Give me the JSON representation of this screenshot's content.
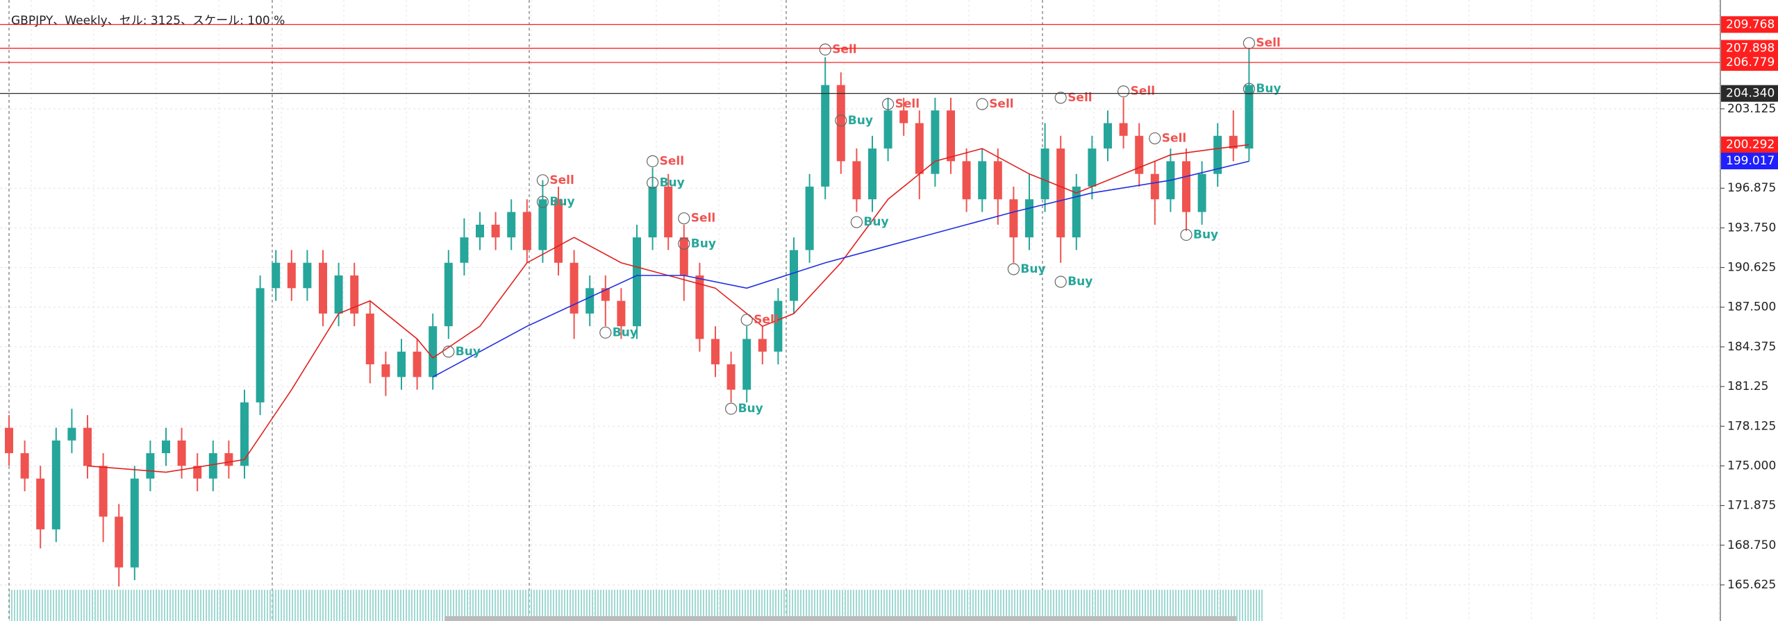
{
  "chart_data": {
    "type": "candlestick",
    "title": "GBPJPY、Weekly、セル: 3125、スケール: 100 %",
    "up_color": "#26a69a",
    "down_color": "#ef5350",
    "ylim": [
      162.78,
      211.7
    ],
    "yticks": [
      {
        "value": 165.625,
        "label": "165.625"
      },
      {
        "value": 168.75,
        "label": "168.750"
      },
      171.875,
      {
        "value": 175,
        "label": "175.000"
      },
      178.125,
      181.25,
      {
        "value": 184.375,
        "label": "184.375"
      },
      {
        "value": 187.5,
        "label": "187.500"
      },
      190.625,
      {
        "value": 193.75,
        "label": "193.750"
      },
      196.875,
      203.125
    ],
    "grid": true,
    "open": [
      178,
      176,
      174,
      170,
      177,
      178,
      175,
      171,
      167,
      174,
      176,
      177,
      175,
      174,
      176,
      175,
      180,
      189,
      191,
      189,
      191,
      187,
      190,
      187,
      183,
      182,
      184,
      182,
      186,
      191,
      193,
      194,
      193,
      195,
      192,
      196,
      191,
      187,
      189,
      188,
      186,
      193,
      197,
      193,
      190,
      185,
      183,
      181,
      185,
      184,
      188,
      192,
      197,
      205,
      199,
      196,
      200,
      203,
      202,
      198,
      203,
      199,
      196,
      199,
      196,
      193,
      196,
      200,
      193,
      197,
      200,
      202,
      201,
      198,
      196,
      199,
      195,
      198,
      201,
      200
    ],
    "high": [
      179,
      177,
      175,
      178,
      179.5,
      179,
      176,
      172,
      175,
      177,
      178,
      178,
      176,
      177,
      177,
      181,
      190,
      192,
      192,
      192,
      192,
      191,
      191,
      188,
      184,
      185,
      185,
      187,
      192,
      194.5,
      195,
      195,
      196,
      196,
      197.5,
      197,
      192,
      190,
      190,
      189,
      194,
      198.5,
      198,
      194,
      191,
      186,
      184,
      186,
      186,
      189,
      193,
      198,
      207.2,
      206,
      200,
      201,
      204,
      204,
      203,
      204,
      204,
      200,
      200,
      200,
      197,
      198,
      202,
      201,
      198,
      201,
      203,
      204,
      202,
      199,
      200,
      200,
      199,
      202,
      203,
      207.9
    ],
    "low": [
      175,
      173,
      168.5,
      169,
      176,
      174,
      169,
      165.5,
      166,
      173,
      175,
      174,
      173,
      173,
      174,
      174,
      179,
      188,
      188,
      188,
      186,
      186,
      186,
      181.5,
      180.5,
      181,
      181,
      181,
      185,
      190,
      192,
      192,
      192,
      191,
      191,
      190,
      185,
      186,
      186,
      185,
      185,
      192,
      192,
      188,
      184,
      182,
      180,
      180,
      183,
      183,
      187,
      191,
      196,
      198,
      195,
      195,
      199,
      201,
      196,
      197,
      198,
      195,
      195,
      194,
      191,
      192,
      195,
      191,
      192,
      196,
      199,
      200,
      197,
      194,
      195,
      193.5,
      194,
      197,
      199,
      199
    ],
    "close": [
      176,
      174,
      170,
      177,
      178,
      175,
      171,
      167,
      174,
      176,
      177,
      175,
      174,
      176,
      175,
      180,
      189,
      191,
      189,
      191,
      187,
      190,
      187,
      183,
      182,
      184,
      182,
      186,
      191,
      193,
      194,
      193,
      195,
      192,
      196,
      191,
      187,
      189,
      188,
      186,
      193,
      197,
      193,
      190,
      185,
      183,
      181,
      185,
      184,
      188,
      192,
      197,
      205,
      199,
      196,
      200,
      203,
      202,
      198,
      203,
      199,
      196,
      199,
      196,
      193,
      196,
      200,
      193,
      197,
      200,
      202,
      201,
      198,
      196,
      199,
      195,
      198,
      201,
      200,
      205
    ],
    "lines": [
      {
        "color": "#e02020",
        "x": [
          5,
          10,
          15,
          18,
          21,
          23,
          26,
          27,
          30,
          33,
          36,
          39,
          42,
          45,
          48,
          50,
          53,
          56,
          59,
          62,
          65,
          68,
          71,
          74,
          77,
          79
        ],
        "values": [
          175,
          174.5,
          175.5,
          181,
          187,
          188,
          185,
          183.5,
          186,
          191,
          193,
          191,
          190,
          189,
          186,
          187,
          191,
          196,
          199,
          200,
          198,
          196.5,
          198,
          199.5,
          200,
          200.3
        ]
      },
      {
        "color": "#1f2ee0",
        "x": [
          27,
          33,
          40,
          43,
          47,
          52,
          58,
          64,
          69,
          74,
          79
        ],
        "values": [
          182,
          186,
          190,
          190,
          189,
          191,
          193,
          195,
          196.5,
          197.5,
          199
        ]
      }
    ],
    "signals": [
      {
        "text": "Sell",
        "x": 34,
        "y": 197.5
      },
      {
        "text": "Buy",
        "x": 34,
        "y": 195.8
      },
      {
        "text": "Sell",
        "x": 41,
        "y": 199
      },
      {
        "text": "Buy",
        "x": 41,
        "y": 197.3
      },
      {
        "text": "Sell",
        "x": 43,
        "y": 194.5
      },
      {
        "text": "Buy",
        "x": 43,
        "y": 192.5
      },
      {
        "text": "Buy",
        "x": 38,
        "y": 185.5
      },
      {
        "text": "Buy",
        "x": 28,
        "y": 184
      },
      {
        "text": "Buy",
        "x": 46,
        "y": 179.5
      },
      {
        "text": "Sell",
        "x": 47,
        "y": 186.5
      },
      {
        "text": "Sell",
        "x": 52,
        "y": 207.8
      },
      {
        "text": "Buy",
        "x": 53,
        "y": 202.2
      },
      {
        "text": "Buy",
        "x": 54,
        "y": 194.2
      },
      {
        "text": "Sell",
        "x": 56,
        "y": 203.5
      },
      {
        "text": "Sell",
        "x": 62,
        "y": 203.5
      },
      {
        "text": "Buy",
        "x": 64,
        "y": 190.5
      },
      {
        "text": "Sell",
        "x": 67,
        "y": 204
      },
      {
        "text": "Buy",
        "x": 67,
        "y": 189.5
      },
      {
        "text": "Sell",
        "x": 71,
        "y": 204.5
      },
      {
        "text": "Sell",
        "x": 73,
        "y": 200.8
      },
      {
        "text": "Buy",
        "x": 75,
        "y": 193.2
      },
      {
        "text": "Sell",
        "x": 79,
        "y": 208.3
      },
      {
        "text": "Buy",
        "x": 79,
        "y": 204.7
      }
    ],
    "sell_color": "#ef5350",
    "buy_color": "#26a69a",
    "price_markers": [
      {
        "value": 209.768,
        "color": "#ff1f1f",
        "line": true
      },
      {
        "value": 207.898,
        "color": "#ff1f1f",
        "line": true
      },
      {
        "value": 206.779,
        "color": "#ff1f1f",
        "line": true
      },
      {
        "value": 204.34,
        "label": "204.340",
        "color": "#2a2a2a",
        "line": true
      },
      {
        "value": 200.292,
        "color": "#ff1f1f",
        "line": false
      },
      {
        "value": 199.017,
        "color": "#1f1fff",
        "line": false
      }
    ]
  }
}
